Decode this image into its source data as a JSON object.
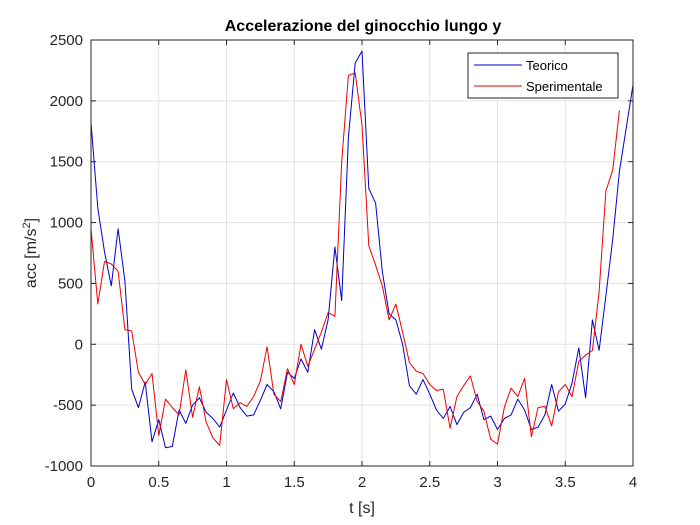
{
  "chart_data": {
    "type": "line",
    "title": "Accelerazione del ginocchio lungo y",
    "xlabel": "t [s]",
    "ylabel_base": "acc [m/s",
    "ylabel_sup": "2",
    "ylabel_end": "]",
    "xlim": [
      0,
      4
    ],
    "ylim": [
      -1000,
      2500
    ],
    "xticks": [
      0,
      0.5,
      1,
      1.5,
      2,
      2.5,
      3,
      3.5,
      4
    ],
    "xtick_labels": [
      "0",
      "0.5",
      "1",
      "1.5",
      "2",
      "2.5",
      "3",
      "3.5",
      "4"
    ],
    "yticks": [
      -1000,
      -500,
      0,
      500,
      1000,
      1500,
      2000,
      2500
    ],
    "ytick_labels": [
      "-1000",
      "-500",
      "0",
      "500",
      "1000",
      "1500",
      "2000",
      "2500"
    ],
    "grid": true,
    "legend_position": "top-right",
    "series": [
      {
        "name": "Teorico",
        "color": "#0000cc",
        "x": [
          0,
          0.05,
          0.1,
          0.15,
          0.2,
          0.25,
          0.3,
          0.35,
          0.4,
          0.45,
          0.5,
          0.55,
          0.6,
          0.65,
          0.7,
          0.75,
          0.8,
          0.85,
          0.9,
          0.95,
          1.0,
          1.05,
          1.1,
          1.15,
          1.2,
          1.25,
          1.3,
          1.35,
          1.4,
          1.45,
          1.5,
          1.55,
          1.6,
          1.65,
          1.7,
          1.75,
          1.8,
          1.85,
          1.9,
          1.95,
          2.0,
          2.05,
          2.1,
          2.15,
          2.2,
          2.25,
          2.3,
          2.35,
          2.4,
          2.45,
          2.5,
          2.55,
          2.6,
          2.65,
          2.7,
          2.75,
          2.8,
          2.85,
          2.9,
          2.95,
          3.0,
          3.05,
          3.1,
          3.15,
          3.2,
          3.25,
          3.3,
          3.35,
          3.4,
          3.45,
          3.5,
          3.55,
          3.6,
          3.65,
          3.7,
          3.75,
          3.8,
          3.85,
          3.9
        ],
        "y": [
          1820,
          1120,
          760,
          480,
          950,
          520,
          -370,
          -520,
          -310,
          -800,
          -620,
          -850,
          -840,
          -540,
          -650,
          -500,
          -440,
          -560,
          -610,
          -680,
          -540,
          -400,
          -520,
          -590,
          -580,
          -460,
          -330,
          -390,
          -530,
          -230,
          -280,
          -120,
          -230,
          120,
          -40,
          200,
          800,
          360,
          1700,
          2310,
          2410,
          1280,
          1160,
          600,
          250,
          200,
          0,
          -340,
          -410,
          -290,
          -410,
          -540,
          -610,
          -510,
          -660,
          -560,
          -520,
          -410,
          -620,
          -590,
          -700,
          -610,
          -580,
          -450,
          -540,
          -700,
          -680,
          -580,
          -330,
          -550,
          -490,
          -320,
          -30,
          -440,
          200,
          -50,
          400,
          860,
          1420
        ],
        "x_end": 4.0,
        "y_end": 2130
      },
      {
        "name": "Sperimentale",
        "color": "#ee0000",
        "x": [
          0,
          0.05,
          0.1,
          0.15,
          0.2,
          0.25,
          0.3,
          0.35,
          0.4,
          0.45,
          0.5,
          0.55,
          0.6,
          0.65,
          0.7,
          0.75,
          0.8,
          0.85,
          0.9,
          0.95,
          1.0,
          1.05,
          1.1,
          1.15,
          1.2,
          1.25,
          1.3,
          1.35,
          1.4,
          1.45,
          1.5,
          1.55,
          1.6,
          1.65,
          1.7,
          1.75,
          1.8,
          1.85,
          1.9,
          1.95,
          2.0,
          2.05,
          2.1,
          2.15,
          2.2,
          2.25,
          2.3,
          2.35,
          2.4,
          2.45,
          2.5,
          2.55,
          2.6,
          2.65,
          2.7,
          2.75,
          2.8,
          2.85,
          2.9,
          2.95,
          3.0,
          3.05,
          3.1,
          3.15,
          3.2,
          3.25,
          3.3,
          3.35,
          3.4,
          3.45,
          3.5,
          3.55,
          3.6,
          3.65,
          3.7,
          3.75,
          3.8,
          3.85,
          3.9
        ],
        "y": [
          950,
          330,
          680,
          660,
          600,
          120,
          110,
          -230,
          -330,
          -240,
          -750,
          -450,
          -520,
          -580,
          -210,
          -600,
          -350,
          -640,
          -770,
          -830,
          -290,
          -530,
          -480,
          -510,
          -430,
          -300,
          -20,
          -410,
          -470,
          -200,
          -330,
          0,
          -180,
          -40,
          100,
          260,
          230,
          1500,
          2210,
          2230,
          1800,
          810,
          650,
          480,
          200,
          330,
          100,
          -150,
          -220,
          -240,
          -330,
          -380,
          -370,
          -690,
          -430,
          -340,
          -260,
          -470,
          -550,
          -780,
          -820,
          -520,
          -360,
          -430,
          -280,
          -760,
          -520,
          -510,
          -670,
          -390,
          -330,
          -430,
          -140,
          -90,
          -50,
          430,
          1260,
          1430,
          1920
        ],
        "x_end": 3.9,
        "y_end": 1920
      }
    ]
  }
}
